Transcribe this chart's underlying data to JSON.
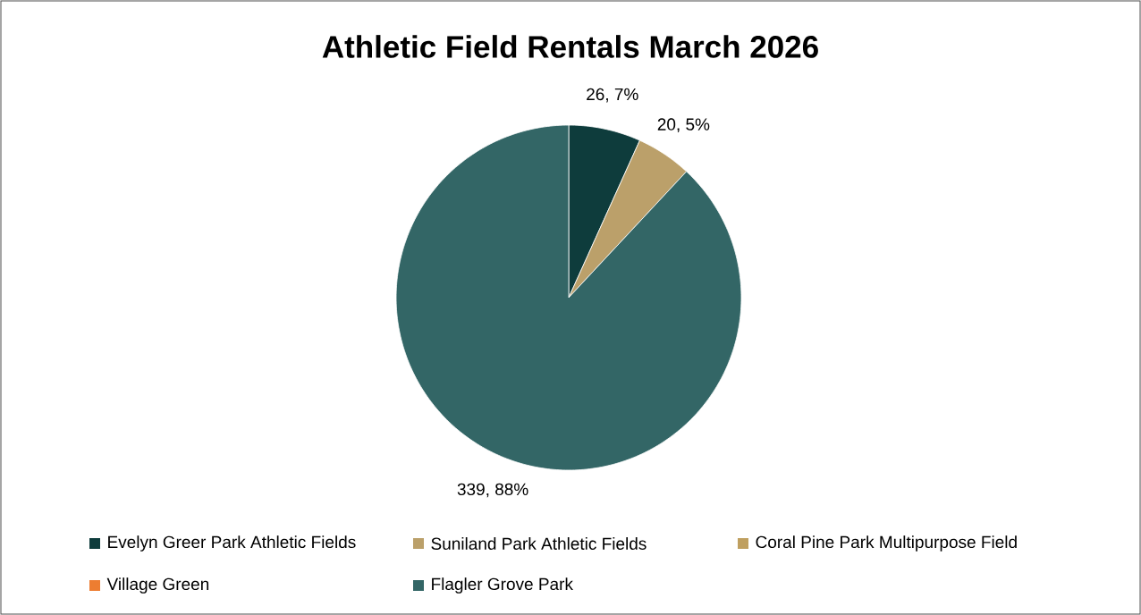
{
  "chart_data": {
    "type": "pie",
    "title": "Athletic Field Rentals March 2026",
    "categories": [
      "Evelyn Greer Park Athletic Fields",
      "Suniland Park Athletic Fields",
      "Coral Pine Park Multipurpose Field",
      "Village Green",
      "Flagler Grove Park"
    ],
    "values": [
      26,
      20,
      0,
      0,
      339
    ],
    "colors": [
      "#0e3c3c",
      "#bba06a",
      "#bf9f5f",
      "#ed7d31",
      "#336666"
    ],
    "value_labels": [
      "26, 7%",
      "20, 5%",
      null,
      null,
      "339, 88%"
    ],
    "legend": "bottom"
  }
}
